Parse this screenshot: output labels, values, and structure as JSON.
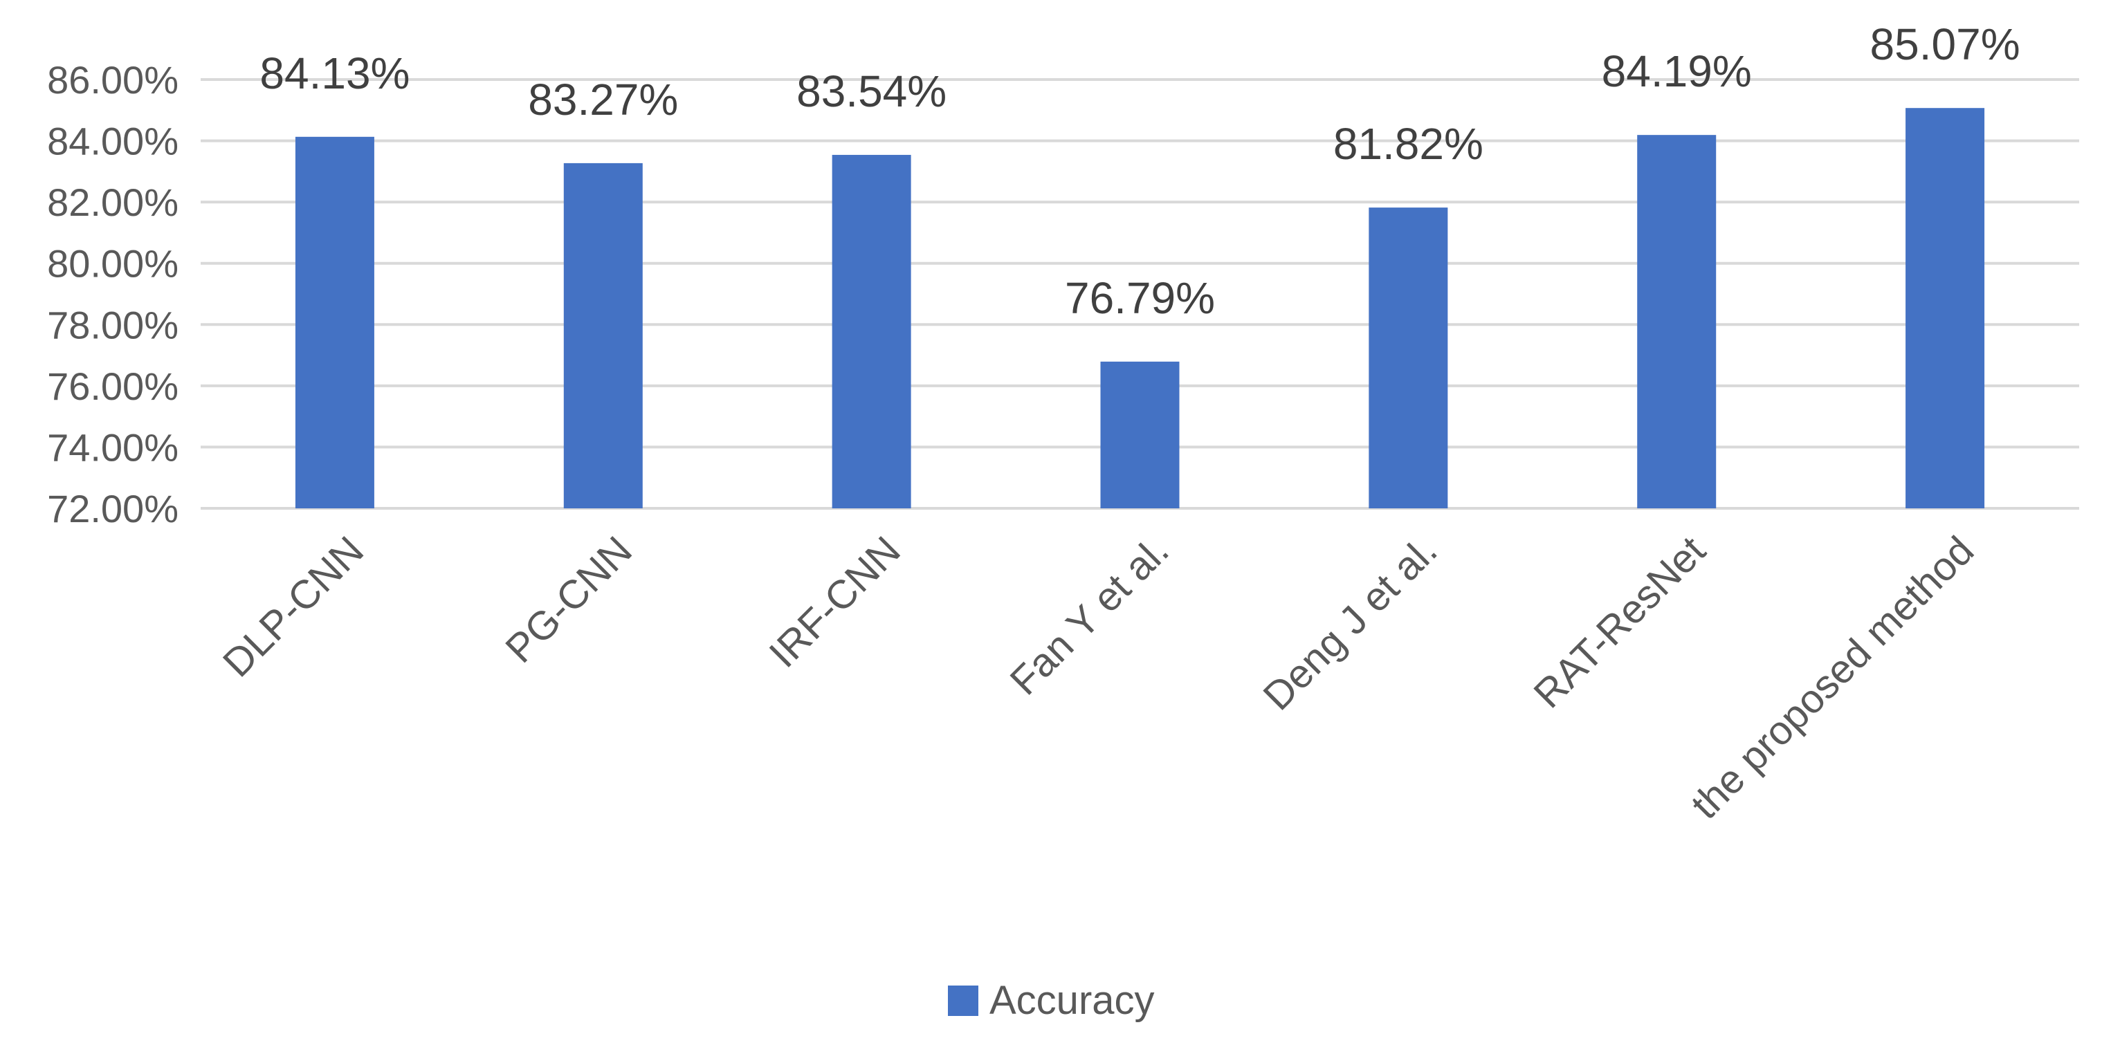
{
  "chart_data": {
    "type": "bar",
    "categories": [
      "DLP-CNN",
      "PG-CNN",
      "IRF-CNN",
      "Fan Y et al.",
      "Deng J et al.",
      "RAT-ResNet",
      "the proposed method"
    ],
    "series": [
      {
        "name": "Accuracy",
        "values": [
          84.13,
          83.27,
          83.54,
          76.79,
          81.82,
          84.19,
          85.07
        ],
        "color": "#4472C4"
      }
    ],
    "data_labels": [
      "84.13%",
      "83.27%",
      "83.54%",
      "76.79%",
      "81.82%",
      "84.19%",
      "85.07%"
    ],
    "y_ticks": [
      "72.00%",
      "74.00%",
      "76.00%",
      "78.00%",
      "80.00%",
      "82.00%",
      "84.00%",
      "86.00%"
    ],
    "ylim": [
      72,
      86
    ],
    "ytick_step": 2,
    "grid": true,
    "legend_position": "bottom",
    "title": "",
    "xlabel": "",
    "ylabel": ""
  }
}
